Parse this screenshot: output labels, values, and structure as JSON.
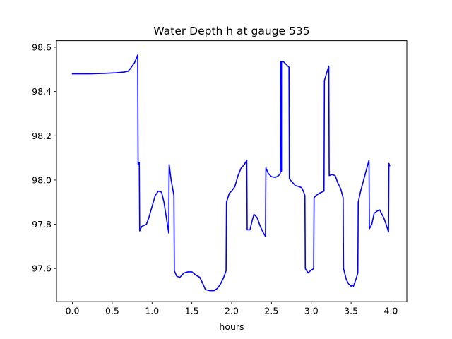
{
  "chart_data": {
    "type": "line",
    "title": "Water Depth h at gauge 535",
    "xlabel": "hours",
    "ylabel": "",
    "xlim": [
      -0.2,
      4.2
    ],
    "ylim": [
      97.45,
      98.63
    ],
    "xticks": [
      0.0,
      0.5,
      1.0,
      1.5,
      2.0,
      2.5,
      3.0,
      3.5,
      4.0
    ],
    "xtick_labels": [
      "0.0",
      "0.5",
      "1.0",
      "1.5",
      "2.0",
      "2.5",
      "3.0",
      "3.5",
      "4.0"
    ],
    "yticks": [
      97.6,
      97.8,
      98.0,
      98.2,
      98.4,
      98.6
    ],
    "ytick_labels": [
      "97.6",
      "97.8",
      "98.0",
      "98.2",
      "98.4",
      "98.6"
    ],
    "grid": false,
    "legend": "none",
    "series": [
      {
        "color": "#0000ff",
        "points": [
          [
            0.0,
            98.48
          ],
          [
            0.2,
            98.48
          ],
          [
            0.4,
            98.482
          ],
          [
            0.55,
            98.485
          ],
          [
            0.65,
            98.488
          ],
          [
            0.7,
            98.492
          ],
          [
            0.74,
            98.51
          ],
          [
            0.78,
            98.53
          ],
          [
            0.82,
            98.565
          ],
          [
            0.825,
            98.07
          ],
          [
            0.835,
            98.07
          ],
          [
            0.84,
            98.08
          ],
          [
            0.845,
            97.77
          ],
          [
            0.87,
            97.79
          ],
          [
            0.9,
            97.795
          ],
          [
            0.93,
            97.8
          ],
          [
            0.96,
            97.83
          ],
          [
            1.0,
            97.88
          ],
          [
            1.04,
            97.93
          ],
          [
            1.08,
            97.95
          ],
          [
            1.12,
            97.945
          ],
          [
            1.15,
            97.9
          ],
          [
            1.18,
            97.83
          ],
          [
            1.21,
            97.76
          ],
          [
            1.215,
            98.07
          ],
          [
            1.24,
            98.0
          ],
          [
            1.275,
            97.93
          ],
          [
            1.28,
            97.59
          ],
          [
            1.31,
            97.565
          ],
          [
            1.35,
            97.56
          ],
          [
            1.4,
            97.58
          ],
          [
            1.45,
            97.585
          ],
          [
            1.5,
            97.585
          ],
          [
            1.55,
            97.57
          ],
          [
            1.6,
            97.56
          ],
          [
            1.64,
            97.53
          ],
          [
            1.67,
            97.505
          ],
          [
            1.72,
            97.5
          ],
          [
            1.78,
            97.5
          ],
          [
            1.82,
            97.51
          ],
          [
            1.86,
            97.53
          ],
          [
            1.9,
            97.56
          ],
          [
            1.93,
            97.59
          ],
          [
            1.935,
            97.9
          ],
          [
            1.97,
            97.94
          ],
          [
            2.0,
            97.95
          ],
          [
            2.04,
            97.97
          ],
          [
            2.08,
            98.02
          ],
          [
            2.12,
            98.055
          ],
          [
            2.16,
            98.07
          ],
          [
            2.19,
            98.09
          ],
          [
            2.195,
            97.775
          ],
          [
            2.23,
            97.775
          ],
          [
            2.26,
            97.82
          ],
          [
            2.28,
            97.845
          ],
          [
            2.32,
            97.83
          ],
          [
            2.36,
            97.79
          ],
          [
            2.4,
            97.76
          ],
          [
            2.425,
            97.745
          ],
          [
            2.43,
            98.055
          ],
          [
            2.46,
            98.03
          ],
          [
            2.5,
            98.015
          ],
          [
            2.55,
            98.012
          ],
          [
            2.59,
            98.02
          ],
          [
            2.61,
            98.03
          ],
          [
            2.615,
            98.535
          ],
          [
            2.625,
            98.535
          ],
          [
            2.625,
            98.04
          ],
          [
            2.635,
            98.04
          ],
          [
            2.635,
            98.535
          ],
          [
            2.65,
            98.535
          ],
          [
            2.72,
            98.51
          ],
          [
            2.725,
            98.005
          ],
          [
            2.75,
            97.995
          ],
          [
            2.8,
            97.975
          ],
          [
            2.85,
            97.97
          ],
          [
            2.88,
            97.965
          ],
          [
            2.9,
            97.95
          ],
          [
            2.92,
            97.93
          ],
          [
            2.925,
            97.6
          ],
          [
            2.96,
            97.58
          ],
          [
            2.99,
            97.59
          ],
          [
            3.03,
            97.6
          ],
          [
            3.035,
            97.92
          ],
          [
            3.06,
            97.93
          ],
          [
            3.1,
            97.94
          ],
          [
            3.16,
            97.95
          ],
          [
            3.165,
            98.45
          ],
          [
            3.19,
            98.48
          ],
          [
            3.22,
            98.515
          ],
          [
            3.225,
            98.02
          ],
          [
            3.26,
            98.025
          ],
          [
            3.3,
            98.02
          ],
          [
            3.33,
            97.99
          ],
          [
            3.37,
            97.96
          ],
          [
            3.4,
            97.92
          ],
          [
            3.405,
            97.6
          ],
          [
            3.44,
            97.55
          ],
          [
            3.47,
            97.53
          ],
          [
            3.5,
            97.52
          ],
          [
            3.52,
            97.525
          ],
          [
            3.53,
            97.52
          ],
          [
            3.56,
            97.55
          ],
          [
            3.585,
            97.58
          ],
          [
            3.59,
            97.9
          ],
          [
            3.62,
            97.95
          ],
          [
            3.65,
            97.99
          ],
          [
            3.68,
            98.03
          ],
          [
            3.71,
            98.07
          ],
          [
            3.725,
            98.09
          ],
          [
            3.73,
            97.78
          ],
          [
            3.76,
            97.8
          ],
          [
            3.79,
            97.85
          ],
          [
            3.83,
            97.86
          ],
          [
            3.86,
            97.865
          ],
          [
            3.88,
            97.85
          ],
          [
            3.91,
            97.83
          ],
          [
            3.94,
            97.8
          ],
          [
            3.97,
            97.765
          ],
          [
            3.975,
            98.075
          ],
          [
            3.985,
            98.065
          ]
        ]
      }
    ]
  }
}
